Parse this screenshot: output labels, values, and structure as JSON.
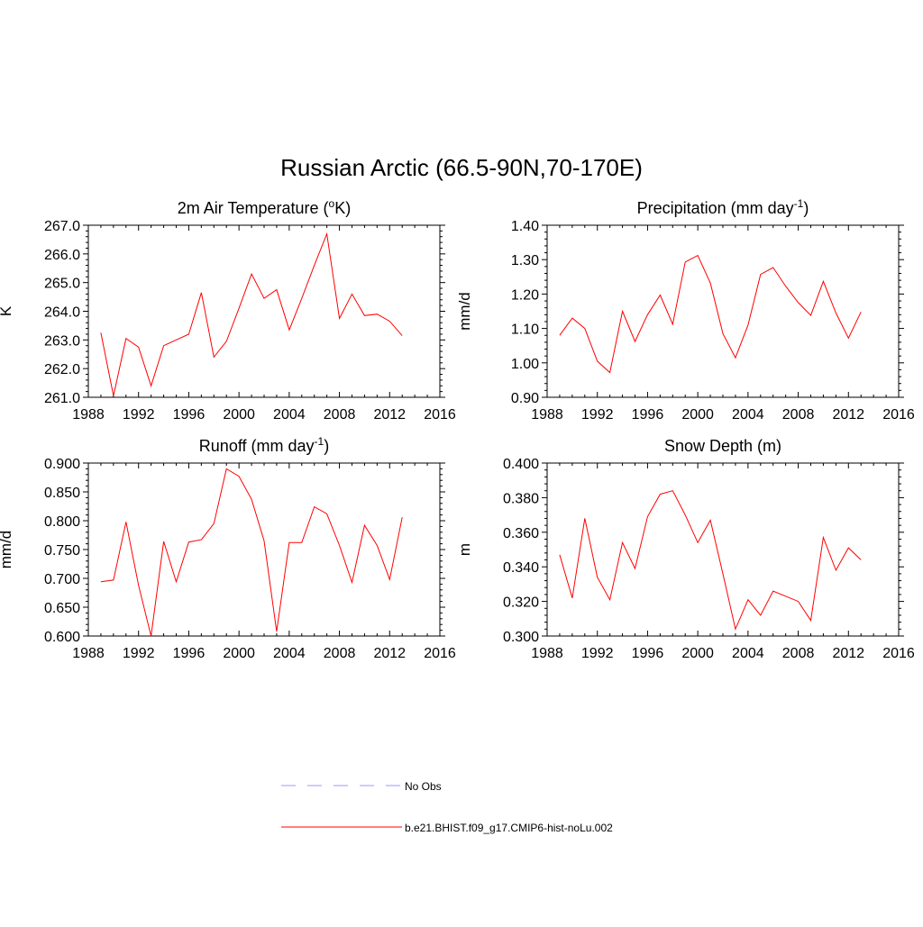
{
  "main_title": "Russian Arctic (66.5-90N,70-170E)",
  "legend": [
    {
      "label": "No Obs",
      "color": "#9a9aff",
      "style": "dashed"
    },
    {
      "label": "b.e21.BHIST.f09_g17.CMIP6-hist-noLu.002",
      "color": "#ff0000",
      "style": "solid"
    }
  ],
  "chart_data": [
    {
      "type": "line",
      "title": "2m Air Temperature (",
      "title_sup": "o",
      "title_suffix": "K)",
      "ylabel": "K",
      "xlim": [
        1988,
        2016
      ],
      "ylim": [
        261.0,
        267.0
      ],
      "xticks": [
        "1988",
        "1992",
        "1996",
        "2000",
        "2004",
        "2008",
        "2012",
        "2016"
      ],
      "yticks": [
        "261.0",
        "262.0",
        "263.0",
        "264.0",
        "265.0",
        "266.0",
        "267.0"
      ],
      "series": [
        {
          "color": "#ff0000",
          "x": [
            1989,
            1990,
            1991,
            1992,
            1993,
            1994,
            1995,
            1996,
            1997,
            1998,
            1999,
            2000,
            2001,
            2002,
            2003,
            2004,
            2005,
            2006,
            2007,
            2008,
            2009,
            2010,
            2011,
            2012,
            2013
          ],
          "values": [
            263.25,
            261.05,
            263.05,
            262.75,
            261.4,
            262.8,
            263.0,
            263.2,
            264.65,
            262.4,
            262.95,
            264.1,
            265.3,
            264.45,
            264.75,
            263.35,
            264.45,
            265.6,
            266.7,
            263.75,
            264.6,
            263.85,
            263.9,
            263.65,
            263.15
          ]
        }
      ]
    },
    {
      "type": "line",
      "title": "Precipitation (mm day",
      "title_sup": "-1",
      "title_suffix": ")",
      "ylabel": "mm/d",
      "xlim": [
        1988,
        2016
      ],
      "ylim": [
        0.9,
        1.4
      ],
      "xticks": [
        "1988",
        "1992",
        "1996",
        "2000",
        "2004",
        "2008",
        "2012",
        "2016"
      ],
      "yticks": [
        "0.90",
        "1.00",
        "1.10",
        "1.20",
        "1.30",
        "1.40"
      ],
      "series": [
        {
          "color": "#ff0000",
          "x": [
            1989,
            1990,
            1991,
            1992,
            1993,
            1994,
            1995,
            1996,
            1997,
            1998,
            1999,
            2000,
            2001,
            2002,
            2003,
            2004,
            2005,
            2006,
            2007,
            2008,
            2009,
            2010,
            2011,
            2012,
            2013
          ],
          "values": [
            1.08,
            1.13,
            1.1,
            1.005,
            0.972,
            1.15,
            1.062,
            1.14,
            1.197,
            1.112,
            1.293,
            1.312,
            1.232,
            1.085,
            1.015,
            1.11,
            1.257,
            1.277,
            1.223,
            1.175,
            1.138,
            1.237,
            1.145,
            1.072,
            1.148
          ]
        }
      ]
    },
    {
      "type": "line",
      "title": "Runoff (mm day",
      "title_sup": "-1",
      "title_suffix": ")",
      "ylabel": "mm/d",
      "xlim": [
        1988,
        2016
      ],
      "ylim": [
        0.6,
        0.9
      ],
      "xticks": [
        "1988",
        "1992",
        "1996",
        "2000",
        "2004",
        "2008",
        "2012",
        "2016"
      ],
      "yticks": [
        "0.600",
        "0.650",
        "0.700",
        "0.750",
        "0.800",
        "0.850",
        "0.900"
      ],
      "series": [
        {
          "color": "#ff0000",
          "x": [
            1989,
            1990,
            1991,
            1992,
            1993,
            1994,
            1995,
            1996,
            1997,
            1998,
            1999,
            2000,
            2001,
            2002,
            2003,
            2004,
            2005,
            2006,
            2007,
            2008,
            2009,
            2010,
            2011,
            2012,
            2013
          ],
          "values": [
            0.694,
            0.697,
            0.798,
            0.688,
            0.6,
            0.764,
            0.694,
            0.763,
            0.767,
            0.795,
            0.89,
            0.877,
            0.837,
            0.765,
            0.608,
            0.762,
            0.762,
            0.824,
            0.812,
            0.757,
            0.693,
            0.792,
            0.757,
            0.698,
            0.806
          ]
        }
      ]
    },
    {
      "type": "line",
      "title": "Snow Depth (m)",
      "title_sup": "",
      "title_suffix": "",
      "ylabel": "m",
      "xlim": [
        1988,
        2016
      ],
      "ylim": [
        0.3,
        0.4
      ],
      "xticks": [
        "1988",
        "1992",
        "1996",
        "2000",
        "2004",
        "2008",
        "2012",
        "2016"
      ],
      "yticks": [
        "0.300",
        "0.320",
        "0.340",
        "0.360",
        "0.380",
        "0.400"
      ],
      "series": [
        {
          "color": "#ff0000",
          "x": [
            1989,
            1990,
            1991,
            1992,
            1993,
            1994,
            1995,
            1996,
            1997,
            1998,
            1999,
            2000,
            2001,
            2002,
            2003,
            2004,
            2005,
            2006,
            2007,
            2008,
            2009,
            2010,
            2011,
            2012,
            2013
          ],
          "values": [
            0.347,
            0.322,
            0.368,
            0.334,
            0.321,
            0.354,
            0.339,
            0.369,
            0.382,
            0.384,
            0.37,
            0.354,
            0.367,
            0.336,
            0.304,
            0.321,
            0.312,
            0.326,
            0.323,
            0.32,
            0.309,
            0.357,
            0.338,
            0.351,
            0.344
          ]
        }
      ]
    }
  ]
}
